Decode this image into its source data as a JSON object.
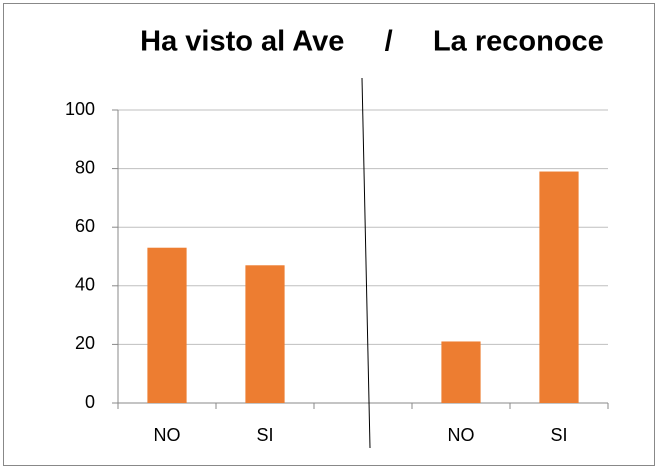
{
  "chart_data": {
    "type": "bar",
    "title": "Ha visto al Ave     /     La reconoce",
    "categories": [
      "NO",
      "SI",
      null,
      "NO",
      "SI"
    ],
    "values": [
      53,
      47,
      null,
      21,
      79
    ],
    "color": "#ed7d31",
    "ylim": [
      0,
      100
    ],
    "yticks": [
      0,
      20,
      40,
      60,
      80,
      100
    ],
    "grid": true
  }
}
